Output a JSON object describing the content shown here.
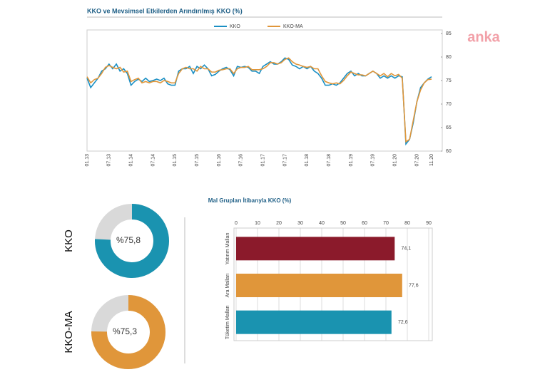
{
  "logo": "anka",
  "chart_data": [
    {
      "type": "line",
      "title": "KKO ve Mevsimsel Etkilerden Arındırılmış KKO (%)",
      "categories": [
        "01.13",
        null,
        null,
        null,
        null,
        null,
        "07.13",
        null,
        null,
        null,
        null,
        null,
        "01.14",
        null,
        null,
        null,
        null,
        null,
        "07.14",
        null,
        null,
        null,
        null,
        null,
        "01.15",
        null,
        null,
        null,
        null,
        null,
        "07.15",
        null,
        null,
        null,
        null,
        null,
        "01.16",
        null,
        null,
        null,
        null,
        null,
        "07.16",
        null,
        null,
        null,
        null,
        null,
        "01.17",
        null,
        null,
        null,
        null,
        null,
        "07.17",
        null,
        null,
        null,
        null,
        null,
        "01.18",
        null,
        null,
        null,
        null,
        null,
        "07.18",
        null,
        null,
        null,
        null,
        null,
        "01.19",
        null,
        null,
        null,
        null,
        null,
        "07.19",
        null,
        null,
        null,
        null,
        null,
        "01.20",
        null,
        null,
        null,
        null,
        null,
        "07.20",
        null,
        null,
        null,
        "11.20"
      ],
      "series": [
        {
          "name": "KKO",
          "color": "#1a8fc4",
          "values": [
            75.5,
            73.5,
            74.5,
            75.5,
            77,
            77.5,
            78.5,
            77.5,
            78.5,
            77,
            77.5,
            76.5,
            74,
            74.8,
            75.3,
            74.8,
            75.5,
            74.8,
            75,
            75.3,
            75,
            75.5,
            74.3,
            74,
            74,
            77,
            77.5,
            77.5,
            78,
            76.5,
            78,
            77.5,
            78.3,
            77.5,
            76,
            76.3,
            77,
            77.5,
            77.8,
            77.3,
            76,
            78,
            77.8,
            78,
            77.8,
            77,
            77,
            76.5,
            78,
            78.5,
            79,
            78.5,
            78.5,
            79,
            79.8,
            79.5,
            78.3,
            78,
            77.5,
            78,
            77.5,
            78,
            77,
            76.5,
            75.5,
            74,
            74,
            74.3,
            74,
            74.5,
            75.5,
            76.5,
            77,
            76,
            76.5,
            76,
            76,
            76.5,
            77,
            76.5,
            75.5,
            76,
            75.5,
            76,
            75.5,
            76,
            75.8,
            61.5,
            62.5,
            66,
            70.5,
            73.5,
            74.5,
            75.3,
            75.8
          ]
        },
        {
          "name": "KKO-MA",
          "color": "#e0963a",
          "values": [
            75.8,
            74.5,
            75.2,
            75.5,
            76.5,
            77.8,
            78.2,
            77.8,
            77.5,
            77.8,
            76.8,
            77,
            74.8,
            75.2,
            75.5,
            74.5,
            74.8,
            74.5,
            74.8,
            74.8,
            74.5,
            75,
            74.8,
            74.5,
            74.5,
            76.5,
            77.5,
            77.8,
            77.5,
            77.5,
            77,
            78,
            77.5,
            77.5,
            76.8,
            76.8,
            77.2,
            77.3,
            77.5,
            77.5,
            76.5,
            77.5,
            77.8,
            77.8,
            78,
            77.3,
            77.3,
            77.3,
            77.5,
            78,
            78.8,
            78.8,
            78.5,
            78.8,
            79.5,
            79.8,
            79,
            78.5,
            78.3,
            78,
            77.8,
            78,
            77.5,
            77.5,
            76,
            74.8,
            74.5,
            74.3,
            74.5,
            74.3,
            75,
            76,
            76.8,
            76.5,
            76.2,
            76.2,
            76,
            76.5,
            77,
            76.5,
            76,
            76.5,
            75.8,
            76.5,
            76,
            76.3,
            75.5,
            62,
            62.5,
            66.5,
            70.5,
            73,
            74.5,
            75.2,
            75.3
          ]
        }
      ],
      "ylim": [
        60,
        85
      ],
      "yticks": [
        60,
        65,
        70,
        75,
        80,
        85
      ],
      "grid": false
    },
    {
      "type": "pie",
      "title": "KKO",
      "value": 75.8,
      "value_label": "%75,8",
      "ylim": [
        0,
        100
      ],
      "color": "#1a93b0",
      "track_color": "#d9d9d9"
    },
    {
      "type": "pie",
      "title": "KKO-MA",
      "value": 75.3,
      "value_label": "%75,3",
      "ylim": [
        0,
        100
      ],
      "color": "#e0963a",
      "track_color": "#d9d9d9"
    },
    {
      "type": "bar",
      "horizontal": true,
      "title": "Mal Grupları İtibarıyla KKO (%)",
      "categories": [
        "Yatırım Malları",
        "Ara Malları",
        "Tüketim Malları"
      ],
      "values": [
        74.1,
        77.6,
        72.6
      ],
      "value_labels": [
        "74,1",
        "77,6",
        "72,6"
      ],
      "colors": [
        "#8b1a2b",
        "#e0963a",
        "#1a93b0"
      ],
      "xlim": [
        0,
        90
      ],
      "xticks": [
        0,
        10,
        20,
        30,
        40,
        50,
        60,
        70,
        80,
        90
      ],
      "grid": true
    }
  ]
}
